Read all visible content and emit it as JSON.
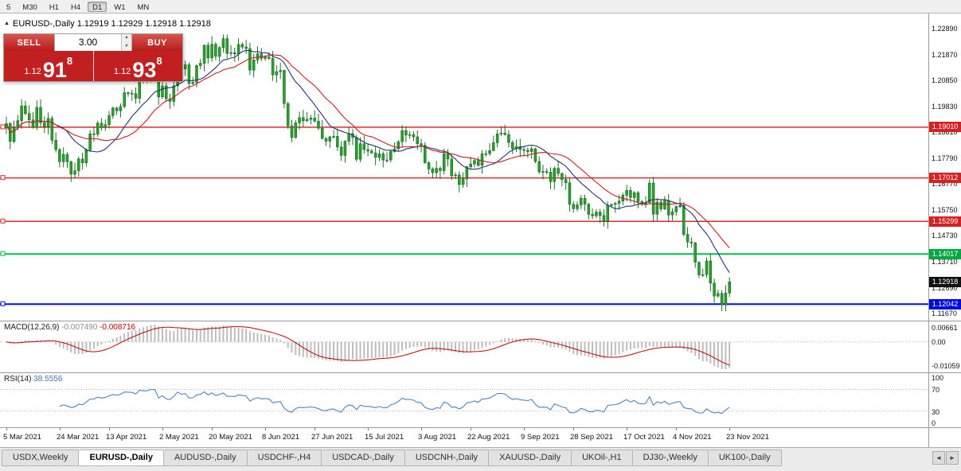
{
  "toolbar": {
    "timeframes": [
      "5",
      "M30",
      "H1",
      "H4",
      "D1",
      "W1",
      "MN"
    ],
    "active": "D1"
  },
  "chart_header": {
    "collapse_icon": "▲",
    "symbol": "EURUSD-,Daily",
    "ohlc": "1.12919 1.12929 1.12918 1.12918"
  },
  "one_click": {
    "sell_label": "SELL",
    "buy_label": "BUY",
    "volume": "3.00",
    "spinner_up_icon": "▲",
    "spinner_down_icon": "▼",
    "sell_price": {
      "small": "1.12",
      "big": "91",
      "sup": "8"
    },
    "buy_price": {
      "small": "1.12",
      "big": "93",
      "sup": "8"
    }
  },
  "price_axis": {
    "ticks": [
      "1.22890",
      "1.21870",
      "1.20850",
      "1.19830",
      "1.18810",
      "1.17790",
      "1.16770",
      "1.15750",
      "1.14730",
      "1.13710",
      "1.12690",
      "1.11670"
    ]
  },
  "current_price": {
    "label": "1.12918",
    "badge_bg": "#111111"
  },
  "macd": {
    "label": "MACD(12,26,9)",
    "value_main": "-0.007490",
    "value_signal": "-0.008716",
    "axis": [
      "0.00661",
      "0.00",
      "-0.01059"
    ],
    "fast": 12,
    "slow": 26,
    "signal": 9
  },
  "rsi": {
    "label": "RSI(14)",
    "value": "38.5556",
    "axis": [
      "100",
      "70",
      "30",
      "0"
    ],
    "period": 14,
    "levels": [
      70,
      30
    ]
  },
  "tabs": {
    "scroll_left_icon": "◄",
    "scroll_right_icon": "►",
    "items": [
      {
        "label": "USDX,Weekly",
        "active": false
      },
      {
        "label": "EURUSD-,Daily",
        "active": true
      },
      {
        "label": "AUDUSD-,Daily",
        "active": false
      },
      {
        "label": "USDCHF-,H4",
        "active": false
      },
      {
        "label": "USDCAD-,Daily",
        "active": false
      },
      {
        "label": "USDCNH-,Daily",
        "active": false
      },
      {
        "label": "XAUUSD-,Daily",
        "active": false
      },
      {
        "label": "UKOil-,H1",
        "active": false
      },
      {
        "label": "DJ30-,Weekly",
        "active": false
      },
      {
        "label": "UK100-,Daily",
        "active": false
      }
    ]
  },
  "chart_data": {
    "type": "candlestick",
    "symbol": "EURUSD-",
    "timeframe": "Daily",
    "x_labels": [
      "5 Mar 2021",
      "24 Mar 2021",
      "13 Apr 2021",
      "2 May 2021",
      "20 May 2021",
      "8 Jun 2021",
      "27 Jun 2021",
      "15 Jul 2021",
      "3 Aug 2021",
      "22 Aug 2021",
      "9 Sep 2021",
      "28 Sep 2021",
      "17 Oct 2021",
      "4 Nov 2021",
      "23 Nov 2021"
    ],
    "price_range": {
      "top": 1.2349,
      "bottom": 1.1139
    },
    "last_price": 1.12918,
    "closes": [
      1.1915,
      1.1845,
      1.19,
      1.1927,
      1.1985,
      1.1955,
      1.193,
      1.19,
      1.1979,
      1.1918,
      1.1903,
      1.1936,
      1.185,
      1.1813,
      1.1765,
      1.1794,
      1.1765,
      1.1716,
      1.173,
      1.1776,
      1.1761,
      1.1812,
      1.1875,
      1.1873,
      1.1917,
      1.1899,
      1.1911,
      1.1947,
      1.1977,
      1.1966,
      1.1983,
      1.2037,
      1.2035,
      1.2033,
      1.2015,
      1.2097,
      1.2089,
      1.2091,
      1.2125,
      1.2122,
      1.202,
      1.2064,
      1.2013,
      1.2003,
      1.2064,
      1.2163,
      1.213,
      1.2147,
      1.2073,
      1.2078,
      1.2144,
      1.2153,
      1.2224,
      1.2174,
      1.2228,
      1.218,
      1.2215,
      1.225,
      1.2192,
      1.2195,
      1.219,
      1.2227,
      1.2217,
      1.2211,
      1.2126,
      1.2166,
      1.219,
      1.2172,
      1.2178,
      1.2172,
      1.2107,
      1.212,
      1.2125,
      1.1994,
      1.1906,
      1.1861,
      1.1918,
      1.1939,
      1.1926,
      1.1932,
      1.1937,
      1.1925,
      1.1897,
      1.1857,
      1.1846,
      1.1863,
      1.1865,
      1.1823,
      1.179,
      1.1846,
      1.1876,
      1.1861,
      1.1775,
      1.1836,
      1.1813,
      1.1807,
      1.18,
      1.1782,
      1.1796,
      1.1772,
      1.1772,
      1.1805,
      1.1816,
      1.1844,
      1.1888,
      1.187,
      1.1872,
      1.1863,
      1.1836,
      1.183,
      1.1761,
      1.1737,
      1.1722,
      1.1739,
      1.173,
      1.1797,
      1.1776,
      1.171,
      1.1713,
      1.1675,
      1.1697,
      1.1745,
      1.1756,
      1.177,
      1.1751,
      1.1796,
      1.1797,
      1.1809,
      1.184,
      1.1875,
      1.1878,
      1.1872,
      1.1841,
      1.1817,
      1.1825,
      1.1813,
      1.181,
      1.1805,
      1.1816,
      1.1766,
      1.1725,
      1.1726,
      1.1724,
      1.1687,
      1.1739,
      1.1719,
      1.1695,
      1.1682,
      1.1597,
      1.158,
      1.1595,
      1.1621,
      1.1598,
      1.1558,
      1.1552,
      1.1567,
      1.1553,
      1.153,
      1.1593,
      1.1597,
      1.1601,
      1.161,
      1.1633,
      1.1652,
      1.1624,
      1.1643,
      1.1608,
      1.1598,
      1.1604,
      1.1681,
      1.1558,
      1.1606,
      1.1579,
      1.1612,
      1.1555,
      1.1568,
      1.1588,
      1.1593,
      1.1479,
      1.1449,
      1.1445,
      1.1369,
      1.1319,
      1.132,
      1.1374,
      1.1287,
      1.1236,
      1.1246,
      1.1201,
      1.1248,
      1.12918
    ],
    "hlines": [
      {
        "price": 1.1901,
        "label": "1.19010",
        "color": "#e02b2b",
        "badge_bg": "#d42222",
        "width": 1.5
      },
      {
        "price": 1.17012,
        "label": "1.17012",
        "color": "#e02b2b",
        "badge_bg": "#d42222",
        "width": 1.5
      },
      {
        "price": 1.15299,
        "label": "1.15299",
        "color": "#e02b2b",
        "badge_bg": "#d42222",
        "width": 1.5
      },
      {
        "price": 1.14017,
        "label": "1.14017",
        "color": "#00c24a",
        "badge_bg": "#00a844",
        "width": 2
      },
      {
        "price": 1.12042,
        "label": "1.12042",
        "color": "#0008ff",
        "badge_bg": "#0008e0",
        "width": 2
      }
    ],
    "colors": {
      "candle": "#2aa12d",
      "candle_border": "#0d5c18",
      "ma_fast": "#20356e",
      "ma_slow": "#cc1d1d",
      "macd_hist": "#bdbdbd",
      "macd_signal": "#c40000",
      "rsi": "#4f83c2",
      "grid_dotted": "#b5b5b5"
    }
  }
}
